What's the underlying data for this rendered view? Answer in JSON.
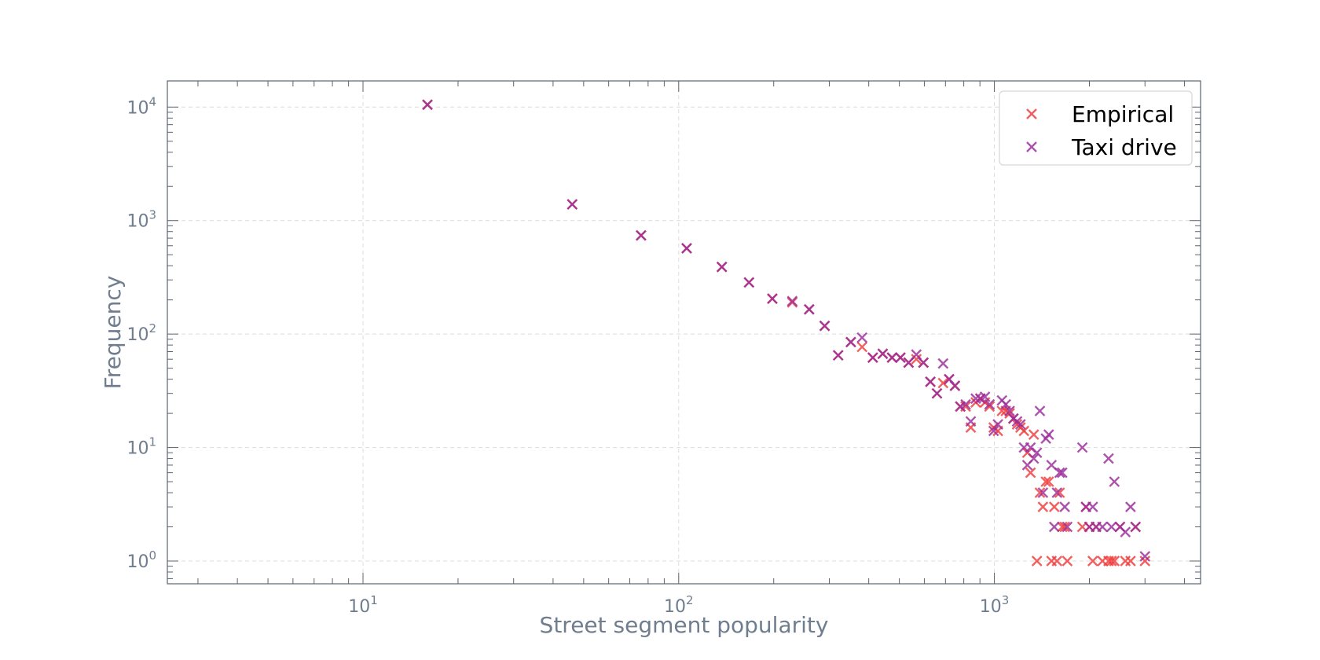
{
  "chart_data": {
    "type": "scatter",
    "xscale": "log",
    "yscale": "log",
    "xlim": [
      2.4,
      4500
    ],
    "ylim": [
      0.63,
      17000
    ],
    "xlabel": "Street segment popularity",
    "ylabel": "Frequency",
    "grid": true,
    "legend_position": "top-right",
    "x_ticks": [
      {
        "value": 10,
        "base": "10",
        "exp": "1"
      },
      {
        "value": 100,
        "base": "10",
        "exp": "2"
      },
      {
        "value": 1000,
        "base": "10",
        "exp": "3"
      }
    ],
    "y_ticks": [
      {
        "value": 1,
        "base": "10",
        "exp": "0"
      },
      {
        "value": 10,
        "base": "10",
        "exp": "1"
      },
      {
        "value": 100,
        "base": "10",
        "exp": "2"
      },
      {
        "value": 1000,
        "base": "10",
        "exp": "3"
      },
      {
        "value": 10000,
        "base": "10",
        "exp": "4"
      }
    ],
    "series": [
      {
        "name": "Empirical",
        "color": "#f03c3c",
        "points": [
          [
            16,
            10500
          ],
          [
            46,
            1390
          ],
          [
            76,
            740
          ],
          [
            106,
            570
          ],
          [
            137,
            390
          ],
          [
            167,
            285
          ],
          [
            198,
            205
          ],
          [
            229,
            190
          ],
          [
            259,
            165
          ],
          [
            290,
            118
          ],
          [
            320,
            65
          ],
          [
            351,
            85
          ],
          [
            381,
            77
          ],
          [
            412,
            62
          ],
          [
            443,
            67
          ],
          [
            474,
            62
          ],
          [
            504,
            62
          ],
          [
            535,
            56
          ],
          [
            566,
            60
          ],
          [
            596,
            56
          ],
          [
            627,
            38
          ],
          [
            658,
            30
          ],
          [
            688,
            37
          ],
          [
            719,
            40
          ],
          [
            750,
            35
          ],
          [
            780,
            23
          ],
          [
            811,
            23
          ],
          [
            842,
            15
          ],
          [
            873,
            25
          ],
          [
            903,
            27
          ],
          [
            934,
            25
          ],
          [
            965,
            23
          ],
          [
            995,
            15
          ],
          [
            1026,
            14
          ],
          [
            1057,
            21
          ],
          [
            1087,
            21
          ],
          [
            1118,
            20
          ],
          [
            1149,
            18
          ],
          [
            1180,
            16
          ],
          [
            1210,
            15
          ],
          [
            1241,
            14
          ],
          [
            1272,
            9
          ],
          [
            1302,
            6
          ],
          [
            1333,
            13
          ],
          [
            1364,
            1
          ],
          [
            1394,
            4
          ],
          [
            1425,
            3
          ],
          [
            1456,
            5
          ],
          [
            1487,
            5
          ],
          [
            1517,
            1
          ],
          [
            1548,
            3
          ],
          [
            1579,
            1
          ],
          [
            1610,
            4
          ],
          [
            1640,
            2
          ],
          [
            1671,
            2
          ],
          [
            1702,
            1
          ],
          [
            1900,
            2
          ],
          [
            1950,
            3
          ],
          [
            2000,
            2
          ],
          [
            2050,
            1
          ],
          [
            2100,
            2
          ],
          [
            2200,
            1
          ],
          [
            2300,
            1
          ],
          [
            2350,
            1
          ],
          [
            2400,
            1
          ],
          [
            2500,
            2
          ],
          [
            2600,
            1
          ],
          [
            2700,
            1
          ],
          [
            2800,
            2
          ],
          [
            3000,
            1
          ]
        ]
      },
      {
        "name": "Taxi drive",
        "color": "#9b2d9b",
        "points": [
          [
            16,
            10500
          ],
          [
            46,
            1390
          ],
          [
            76,
            740
          ],
          [
            106,
            570
          ],
          [
            137,
            390
          ],
          [
            167,
            285
          ],
          [
            198,
            205
          ],
          [
            229,
            195
          ],
          [
            259,
            165
          ],
          [
            290,
            118
          ],
          [
            320,
            65
          ],
          [
            351,
            85
          ],
          [
            381,
            93
          ],
          [
            412,
            62
          ],
          [
            443,
            67
          ],
          [
            474,
            62
          ],
          [
            504,
            62
          ],
          [
            535,
            56
          ],
          [
            566,
            66
          ],
          [
            596,
            56
          ],
          [
            627,
            38
          ],
          [
            658,
            30
          ],
          [
            688,
            55
          ],
          [
            719,
            40
          ],
          [
            750,
            35
          ],
          [
            780,
            23
          ],
          [
            811,
            24
          ],
          [
            842,
            17
          ],
          [
            873,
            27
          ],
          [
            903,
            27
          ],
          [
            934,
            28
          ],
          [
            965,
            24
          ],
          [
            995,
            14
          ],
          [
            1026,
            16
          ],
          [
            1057,
            26
          ],
          [
            1087,
            24
          ],
          [
            1118,
            21
          ],
          [
            1149,
            18
          ],
          [
            1180,
            17
          ],
          [
            1210,
            16
          ],
          [
            1241,
            10
          ],
          [
            1272,
            7
          ],
          [
            1302,
            10
          ],
          [
            1333,
            8
          ],
          [
            1364,
            9
          ],
          [
            1394,
            21
          ],
          [
            1425,
            4
          ],
          [
            1456,
            12
          ],
          [
            1487,
            13
          ],
          [
            1517,
            7
          ],
          [
            1548,
            2
          ],
          [
            1579,
            4
          ],
          [
            1610,
            6
          ],
          [
            1640,
            6
          ],
          [
            1671,
            3
          ],
          [
            1702,
            2
          ],
          [
            1900,
            10
          ],
          [
            1950,
            3
          ],
          [
            2000,
            2
          ],
          [
            2050,
            3
          ],
          [
            2100,
            2
          ],
          [
            2200,
            2
          ],
          [
            2300,
            8
          ],
          [
            2350,
            2
          ],
          [
            2400,
            5
          ],
          [
            2500,
            2
          ],
          [
            2600,
            1.8
          ],
          [
            2700,
            3
          ],
          [
            2800,
            2
          ],
          [
            3000,
            1.1
          ]
        ]
      }
    ]
  }
}
